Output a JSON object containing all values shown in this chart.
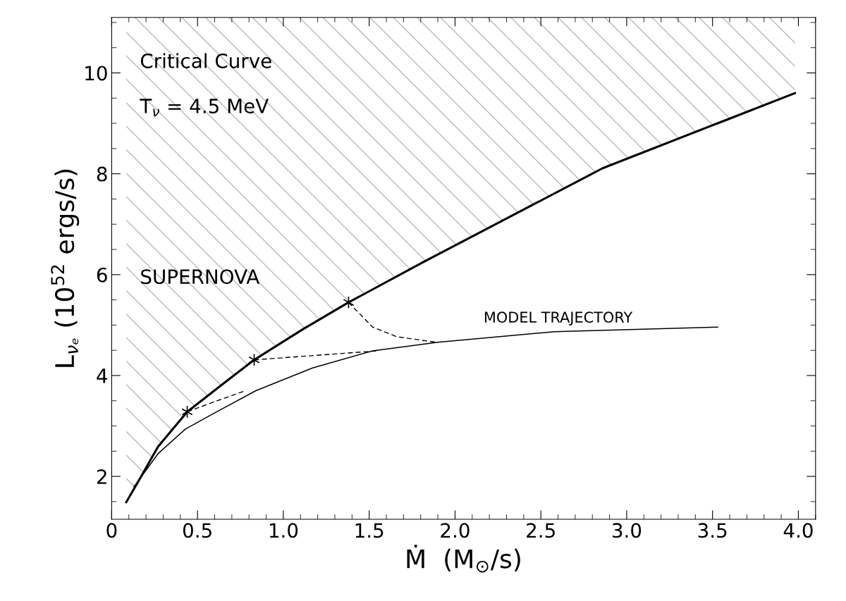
{
  "chart_data": {
    "type": "line",
    "xlabel": "Ṁ  (M$_{⊙}$/s)",
    "ylabel": "L$_{νₑ}$ (10$^{52}$ ergs/s)",
    "annotations": [
      "Critical Curve",
      "T$_{ν}$ = 4.5 MeV",
      "SUPERNOVA",
      {
        "text": "MODEL TRAJECTORY",
        "x": 2.6,
        "y": 4.87
      }
    ],
    "xlim": [
      0,
      4.1
    ],
    "ylim": [
      1.15,
      11.1
    ],
    "xticks": [
      0,
      {
        "value": 0.5,
        "label": "0.5"
      },
      {
        "value": 1,
        "label": "1.0"
      },
      {
        "value": 1.5,
        "label": "1.5"
      },
      {
        "value": 2,
        "label": "2.0"
      },
      {
        "value": 2.5,
        "label": "2.5"
      },
      {
        "value": 3,
        "label": "3.0"
      },
      {
        "value": 3.5,
        "label": "3.5"
      },
      {
        "value": 4,
        "label": "4.0"
      }
    ],
    "yticks": [
      2,
      4,
      6,
      8,
      10
    ],
    "grid": false,
    "legend": false,
    "series": [
      {
        "color": "#000000",
        "x": [
          0.085,
          0.16,
          0.27,
          0.44,
          0.65,
          0.83,
          1.11,
          1.38,
          1.81,
          2.86,
          3.98
        ],
        "values": [
          1.49,
          1.93,
          2.59,
          3.28,
          3.84,
          4.31,
          4.91,
          5.45,
          6.24,
          8.11,
          9.6
        ],
        "lower": [
          1.49,
          1.93,
          2.59,
          3.28,
          3.84,
          4.31,
          4.91,
          5.45,
          6.24,
          8.11,
          9.6
        ],
        "upper": [
          11.1,
          11.1,
          11.1,
          11.1,
          11.1,
          11.1,
          11.1,
          11.1,
          11.1,
          11.1,
          11.1
        ]
      },
      {
        "color": "#000000",
        "x": [
          3.53,
          2.58,
          1.9,
          1.52,
          1.17,
          0.84,
          0.59,
          0.43,
          0.27,
          0.14,
          0.13
        ],
        "values": [
          4.96,
          4.87,
          4.66,
          4.49,
          4.15,
          3.7,
          3.24,
          2.94,
          2.45,
          1.84,
          1.8
        ]
      },
      {
        "color": "#000000",
        "line_style": "dashed",
        "x": [
          1.38,
          1.52,
          1.66,
          1.89
        ],
        "values": [
          5.45,
          4.96,
          4.77,
          4.66
        ]
      },
      {
        "color": "#000000",
        "line_style": "dashed",
        "x": [
          0.83,
          1.19,
          1.55
        ],
        "values": [
          4.31,
          4.4,
          4.49
        ]
      },
      {
        "color": "#000000",
        "line_style": "dashed",
        "x": [
          0.44,
          0.59,
          0.78
        ],
        "values": [
          3.28,
          3.47,
          3.7
        ]
      },
      {
        "type": "scatter",
        "marker": "cross",
        "color": "#000000",
        "x": [
          0.44,
          0.83,
          1.38
        ],
        "values": [
          3.28,
          4.31,
          5.45
        ]
      }
    ]
  }
}
